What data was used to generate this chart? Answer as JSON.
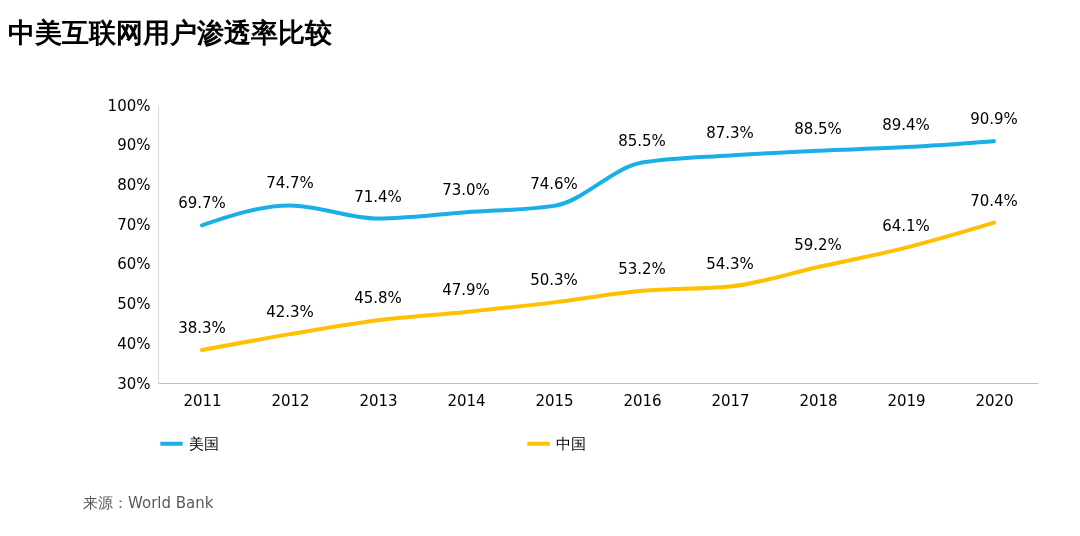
{
  "chart_data": {
    "type": "line",
    "title": "中美互联网用户渗透率比较",
    "categories": [
      "2011",
      "2012",
      "2013",
      "2014",
      "2015",
      "2016",
      "2017",
      "2018",
      "2019",
      "2020"
    ],
    "series": [
      {
        "name": "美国",
        "color": "#1aafe6",
        "values": [
          69.7,
          74.7,
          71.4,
          73.0,
          74.6,
          85.5,
          87.3,
          88.5,
          89.4,
          90.9
        ],
        "value_labels": [
          "69.7%",
          "74.7%",
          "71.4%",
          "73.0%",
          "74.6%",
          "85.5%",
          "87.3%",
          "88.5%",
          "89.4%",
          "90.9%"
        ]
      },
      {
        "name": "中国",
        "color": "#ffc000",
        "values": [
          38.3,
          42.3,
          45.8,
          47.9,
          50.3,
          53.2,
          54.3,
          59.2,
          64.1,
          70.4
        ],
        "value_labels": [
          "38.3%",
          "42.3%",
          "45.8%",
          "47.9%",
          "50.3%",
          "53.2%",
          "54.3%",
          "59.2%",
          "64.1%",
          "70.4%"
        ]
      }
    ],
    "ylim": [
      30,
      100
    ],
    "yticks": [
      {
        "value": 30,
        "label": "30%"
      },
      {
        "value": 40,
        "label": "40%"
      },
      {
        "value": 50,
        "label": "50%"
      },
      {
        "value": 60,
        "label": "60%"
      },
      {
        "value": 70,
        "label": "70%"
      },
      {
        "value": 80,
        "label": "80%"
      },
      {
        "value": 90,
        "label": "90%"
      },
      {
        "value": 100,
        "label": "100%"
      }
    ],
    "legend": "bottom",
    "annotations": [
      "来源：World Bank"
    ]
  }
}
